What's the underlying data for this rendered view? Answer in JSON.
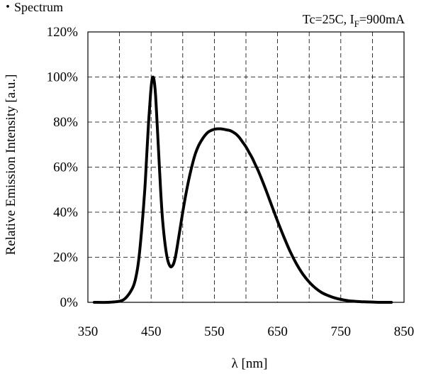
{
  "chart_data": {
    "type": "line",
    "title": "・Spectrum",
    "condition": {
      "text": "Tc=25C, I",
      "subscript": "F",
      "suffix": "=900mA"
    },
    "xlabel": "λ [nm]",
    "ylabel": "Relative Emission Intensity [a.u.]",
    "xlim": [
      350,
      850
    ],
    "ylim": [
      0,
      120
    ],
    "x_ticks": [
      350,
      450,
      550,
      650,
      750,
      850
    ],
    "y_ticks": [
      0,
      20,
      40,
      60,
      80,
      100,
      120
    ],
    "y_tick_labels": [
      "0%",
      "20%",
      "40%",
      "60%",
      "80%",
      "100%",
      "120%"
    ],
    "grid": true,
    "grid_style": "dashed",
    "series_color": "#000000",
    "series": [
      {
        "x": [
          360,
          380,
          400,
          410,
          420,
          425,
          430,
          435,
          440,
          443,
          446,
          449,
          451,
          453,
          455,
          457,
          459,
          462,
          465,
          468,
          472,
          476,
          480,
          483,
          486,
          489,
          492,
          496,
          500,
          505,
          510,
          515,
          520,
          525,
          530,
          535,
          540,
          545,
          550,
          555,
          560,
          565,
          570,
          575,
          580,
          585,
          590,
          595,
          600,
          605,
          610,
          615,
          620,
          630,
          640,
          650,
          660,
          670,
          680,
          690,
          700,
          710,
          720,
          730,
          740,
          750,
          760,
          770,
          780,
          790,
          800,
          810,
          820,
          830
        ],
        "y": [
          0,
          0,
          0.5,
          2,
          6,
          10,
          18,
          32,
          50,
          65,
          80,
          92,
          98,
          100,
          98,
          92,
          82,
          66,
          50,
          37,
          26,
          19,
          16,
          16,
          17.5,
          21,
          26,
          33,
          40,
          48,
          55,
          61,
          66,
          69.5,
          72,
          74,
          75.5,
          76.3,
          76.8,
          77,
          77,
          76.8,
          76.5,
          76.2,
          75.5,
          74.5,
          73,
          71,
          69,
          66.5,
          64,
          61,
          58,
          51,
          43.5,
          36,
          29,
          22.5,
          17,
          12.5,
          9,
          6.3,
          4.3,
          3,
          2,
          1.3,
          0.8,
          0.5,
          0.3,
          0.2,
          0.1,
          0,
          0,
          0
        ]
      }
    ]
  }
}
